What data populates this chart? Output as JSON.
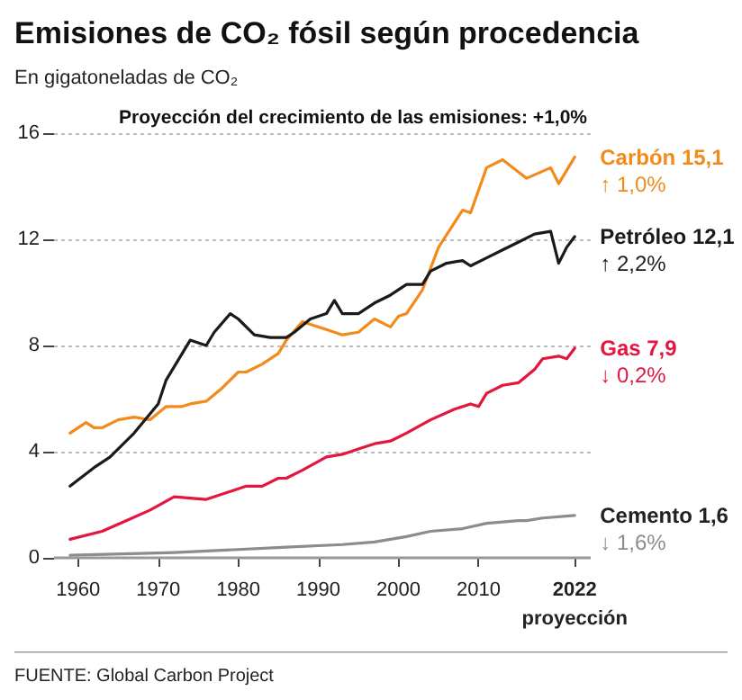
{
  "chart_data": {
    "type": "line",
    "title": "Emisiones de CO₂ fósil según procedencia",
    "subtitle": "En gigatoneladas de CO₂",
    "annotations": [
      "Proyección del crecimiento de las emisiones: +1,0%",
      "↑ 1,0%",
      "↑ 2,2%",
      "↓ 0,2%",
      "↓ 1,6%",
      "FUENTE: Global Carbon Project"
    ],
    "series": [
      {
        "name": "Carbón",
        "color": "#f28a1c",
        "x": [
          1959,
          1961,
          1962,
          1963,
          1965,
          1967,
          1969,
          1971,
          1973,
          1974,
          1976,
          1978,
          1980,
          1981,
          1983,
          1985,
          1986,
          1988,
          1989,
          1991,
          1993,
          1995,
          1997,
          1999,
          2000,
          2001,
          2003,
          2005,
          2008,
          2009,
          2011,
          2013,
          2016,
          2019,
          2020,
          2022
        ],
        "values": [
          4.7,
          5.1,
          4.9,
          4.9,
          5.2,
          5.3,
          5.2,
          5.7,
          5.7,
          5.8,
          5.9,
          6.4,
          7.0,
          7.0,
          7.3,
          7.7,
          8.2,
          8.9,
          8.8,
          8.6,
          8.4,
          8.5,
          9.0,
          8.7,
          9.1,
          9.2,
          10.1,
          11.7,
          13.1,
          13.0,
          14.7,
          15.0,
          14.3,
          14.7,
          14.1,
          15.1
        ],
        "value_labels": [
          null,
          null,
          null,
          null,
          null,
          null,
          null,
          null,
          null,
          null,
          null,
          null,
          null,
          null,
          null,
          null,
          null,
          null,
          null,
          null,
          null,
          null,
          null,
          null,
          null,
          null,
          null,
          null,
          null,
          null,
          null,
          null,
          null,
          null,
          null,
          "15,1"
        ]
      },
      {
        "name": "Petróleo",
        "color": "#1a1a1a",
        "x": [
          1959,
          1962,
          1964,
          1967,
          1970,
          1971,
          1972,
          1974,
          1976,
          1977,
          1979,
          1980,
          1982,
          1984,
          1986,
          1987,
          1989,
          1991,
          1992,
          1993,
          1995,
          1997,
          1999,
          2001,
          2003,
          2004,
          2006,
          2008,
          2009,
          2011,
          2013,
          2015,
          2017,
          2019,
          2020,
          2021,
          2022
        ],
        "values": [
          2.7,
          3.4,
          3.8,
          4.7,
          5.8,
          6.7,
          7.2,
          8.2,
          8.0,
          8.5,
          9.2,
          9.0,
          8.4,
          8.3,
          8.3,
          8.5,
          9.0,
          9.2,
          9.7,
          9.2,
          9.2,
          9.6,
          9.9,
          10.3,
          10.3,
          10.8,
          11.1,
          11.2,
          11.0,
          11.3,
          11.6,
          11.9,
          12.2,
          12.3,
          11.1,
          11.7,
          12.1
        ],
        "value_labels": [
          null,
          null,
          null,
          null,
          null,
          null,
          null,
          null,
          null,
          null,
          null,
          null,
          null,
          null,
          null,
          null,
          null,
          null,
          null,
          null,
          null,
          null,
          null,
          null,
          null,
          null,
          null,
          null,
          null,
          null,
          null,
          null,
          null,
          null,
          null,
          null,
          "12,1"
        ]
      },
      {
        "name": "Gas",
        "color": "#e3163f",
        "x": [
          1959,
          1963,
          1966,
          1969,
          1972,
          1976,
          1979,
          1981,
          1983,
          1985,
          1986,
          1988,
          1991,
          1993,
          1995,
          1997,
          1999,
          2001,
          2004,
          2007,
          2009,
          2010,
          2011,
          2013,
          2015,
          2017,
          2018,
          2020,
          2021,
          2022
        ],
        "values": [
          0.7,
          1.0,
          1.4,
          1.8,
          2.3,
          2.2,
          2.5,
          2.7,
          2.7,
          3.0,
          3.0,
          3.3,
          3.8,
          3.9,
          4.1,
          4.3,
          4.4,
          4.7,
          5.2,
          5.6,
          5.8,
          5.7,
          6.2,
          6.5,
          6.6,
          7.1,
          7.5,
          7.6,
          7.5,
          7.9
        ],
        "value_labels": [
          null,
          null,
          null,
          null,
          null,
          null,
          null,
          null,
          null,
          null,
          null,
          null,
          null,
          null,
          null,
          null,
          null,
          null,
          null,
          null,
          null,
          null,
          null,
          null,
          null,
          null,
          null,
          null,
          null,
          "7,9"
        ]
      },
      {
        "name": "Cemento",
        "color": "#8c8c8c",
        "x": [
          1959,
          1972,
          1986,
          1993,
          1997,
          2001,
          2004,
          2008,
          2011,
          2015,
          2016,
          2018,
          2022
        ],
        "values": [
          0.1,
          0.2,
          0.4,
          0.5,
          0.6,
          0.8,
          1.0,
          1.1,
          1.3,
          1.4,
          1.4,
          1.5,
          1.6
        ],
        "value_labels": [
          null,
          null,
          null,
          null,
          null,
          null,
          null,
          null,
          null,
          null,
          null,
          null,
          "1,6"
        ]
      }
    ],
    "xlim": [
      1957,
      2024
    ],
    "xticks": [
      1960,
      1970,
      1980,
      1990,
      2000,
      2010,
      {
        "value": 2022,
        "label": "2022\nproyección"
      }
    ],
    "ylim": [
      0,
      16
    ],
    "yticks": [
      0,
      4,
      8,
      12,
      16
    ],
    "grid": "y",
    "legend": false,
    "marker": "none"
  }
}
